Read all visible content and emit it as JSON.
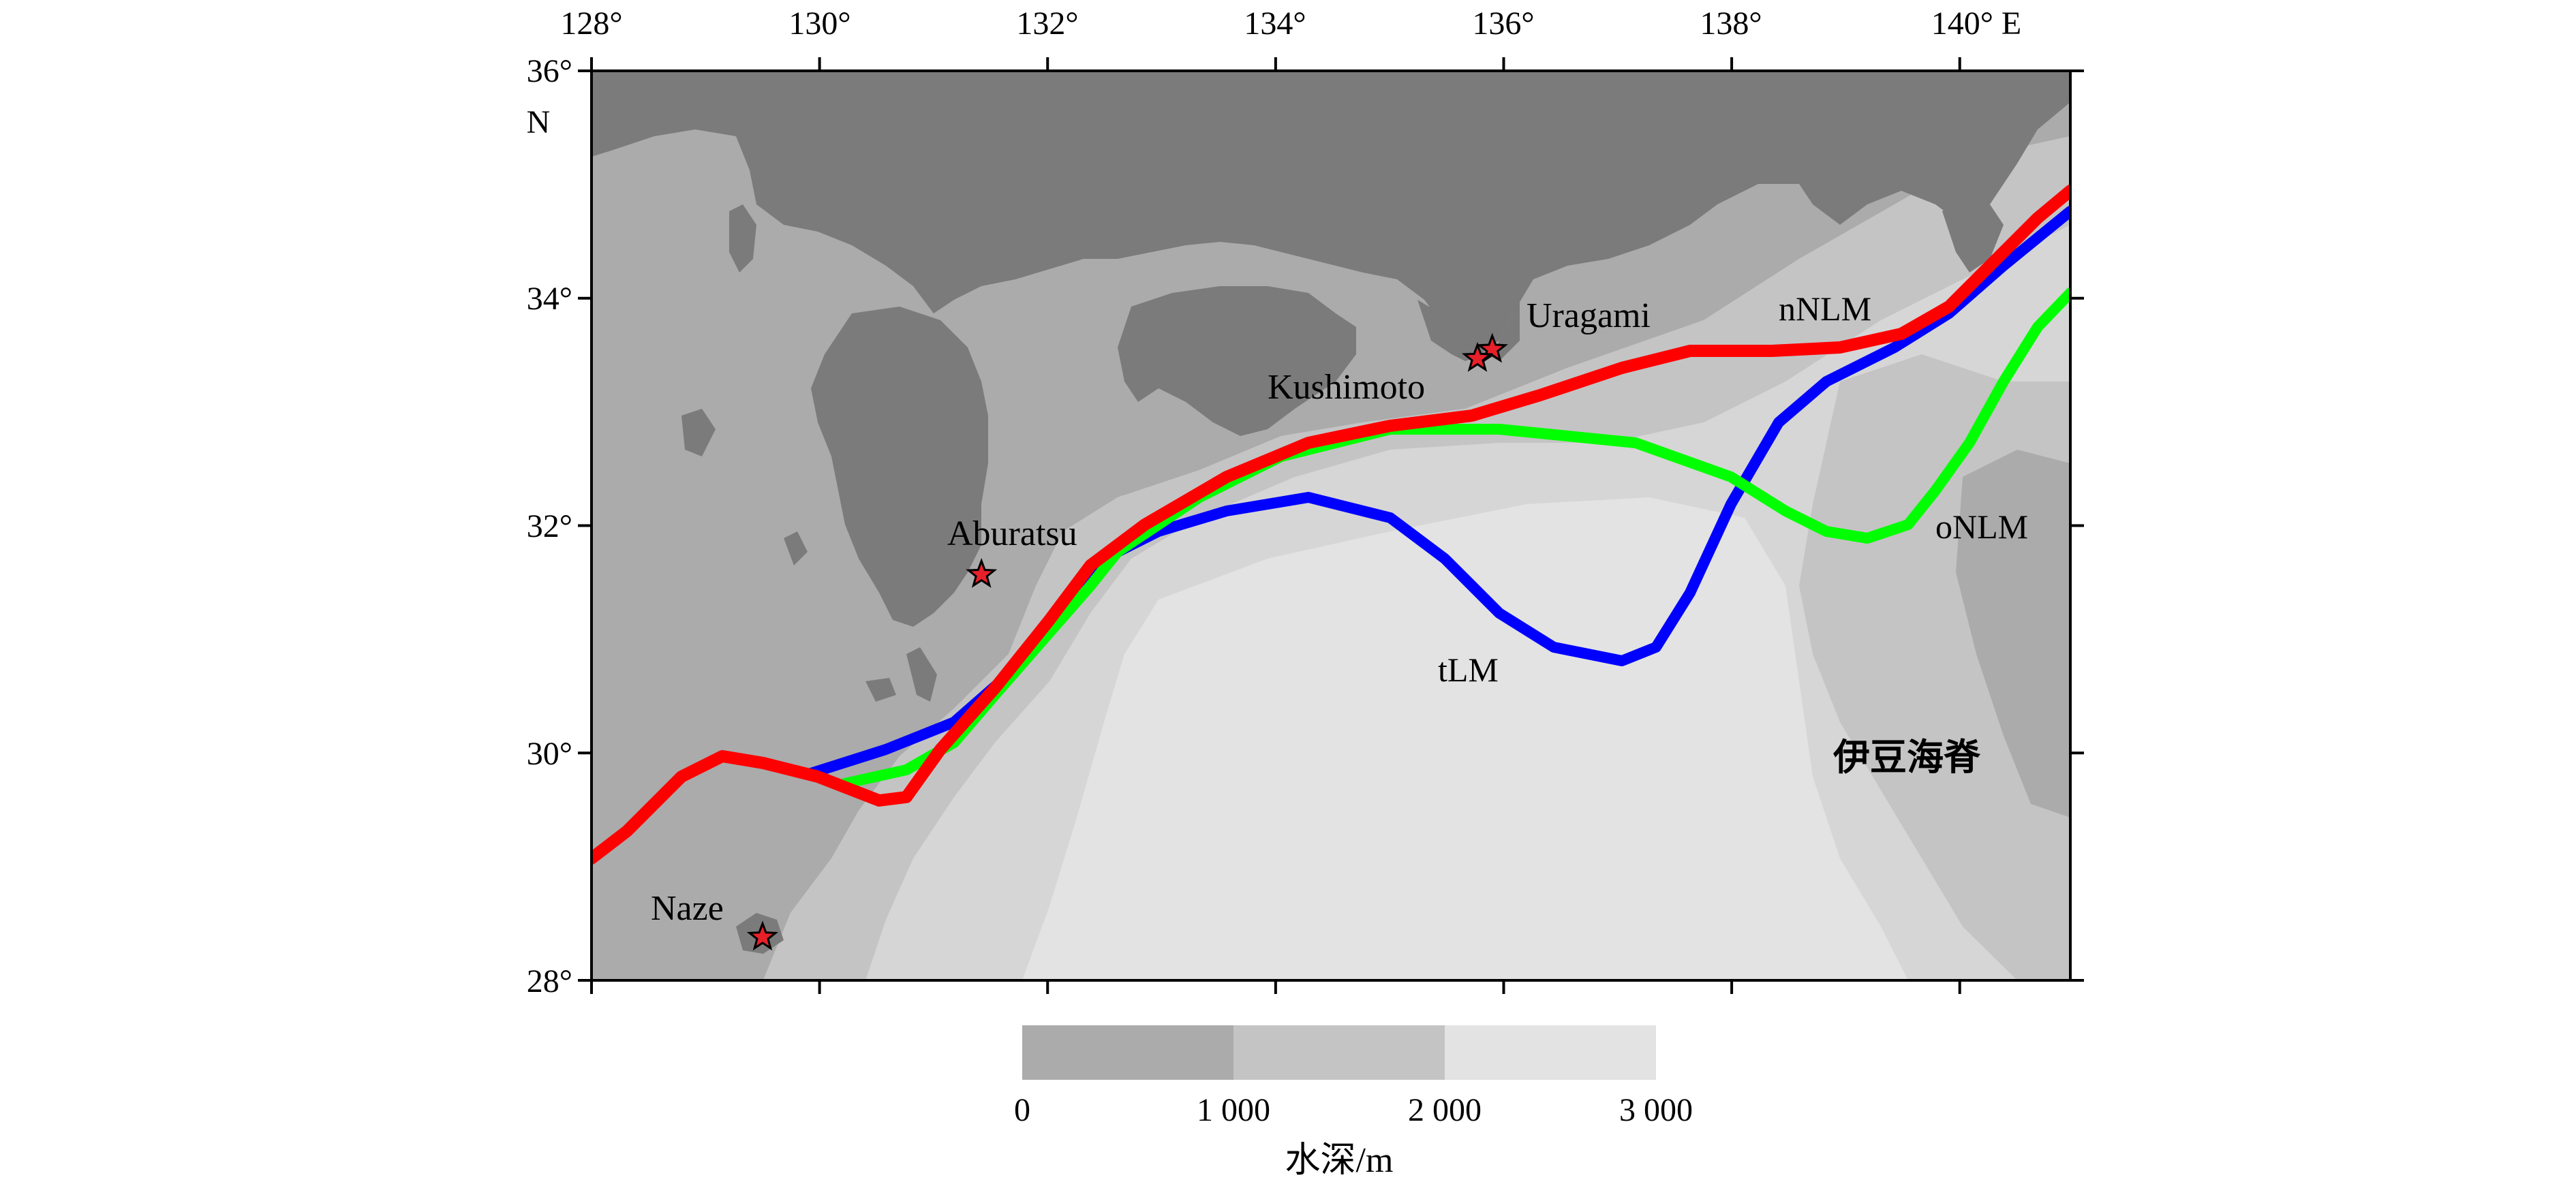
{
  "map": {
    "lon_ticks": [
      "128°",
      "130°",
      "132°",
      "134°",
      "136°",
      "138°",
      "140° E"
    ],
    "lat_ticks": [
      "36°",
      "34°",
      "32°",
      "30°",
      "28°"
    ],
    "lat_unit": "N",
    "stations": [
      {
        "name": "Uragami",
        "lon": 135.9,
        "lat": 33.55
      },
      {
        "name": "Kushimoto",
        "lon": 135.77,
        "lat": 33.47
      },
      {
        "name": "Aburatsu",
        "lon": 131.42,
        "lat": 31.57
      },
      {
        "name": "Naze",
        "lon": 129.5,
        "lat": 28.38
      }
    ],
    "path_labels": {
      "nNLM": "nNLM",
      "oNLM": "oNLM",
      "tLM": "tLM"
    },
    "region_label": "伊豆海脊",
    "colors": {
      "land": "#7b7b7b",
      "shelf": "#a9a9a9",
      "depth_1000": "#c4c4c4",
      "depth_2000": "#d6d6d6",
      "depth_3000": "#e6e6e6",
      "nNLM": "#ff0000",
      "oNLM": "#00ff00",
      "tLM": "#0000ff"
    }
  },
  "colorbar": {
    "ticks": [
      "0",
      "1 000",
      "2 000",
      "3 000"
    ],
    "title": "水深/m"
  }
}
